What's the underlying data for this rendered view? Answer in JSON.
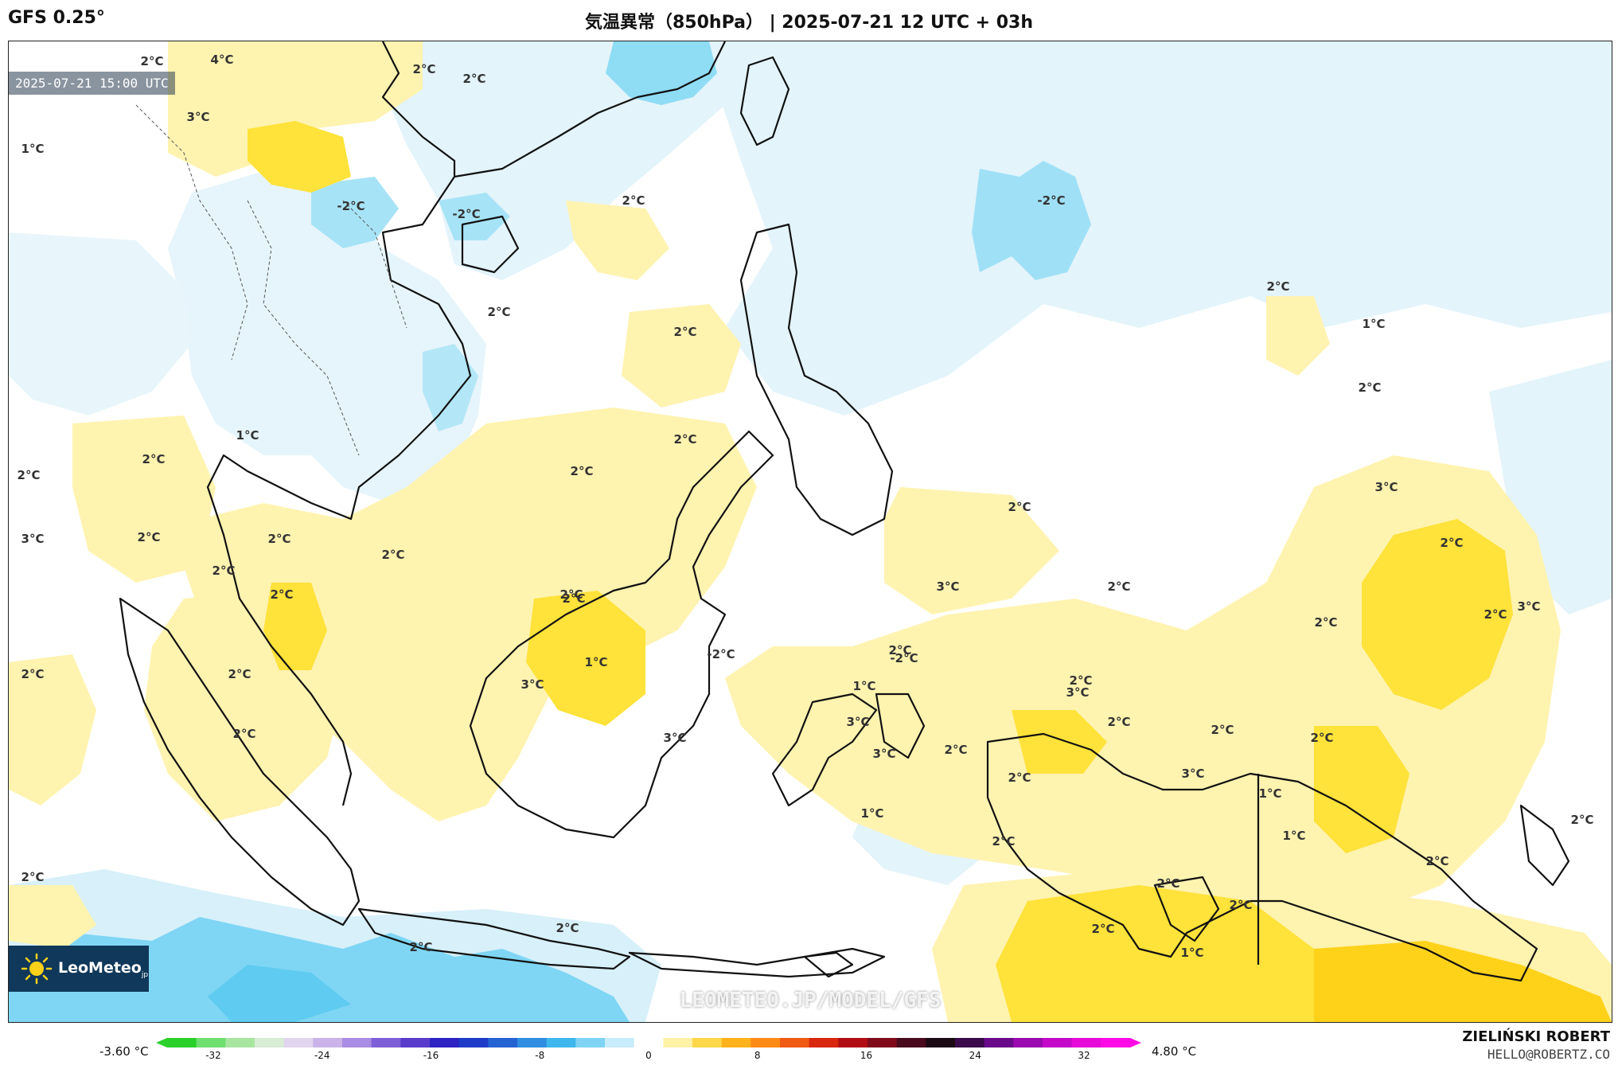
{
  "header": {
    "model": "GFS 0.25°",
    "title": "気温異常（850hPa） | 2025-07-21 12 UTC + 03h"
  },
  "map": {
    "valid_time": "2025-07-21 15:00 UTC",
    "logo_text": "LeoMeteo",
    "logo_suffix": "jp",
    "watermark": "LEOMETEO.JP/MODEL/GFS",
    "labels": [
      "2°C",
      "4°C",
      "2°C",
      "3°C",
      "1°C",
      "2°C",
      "-2°C",
      "-2°C",
      "2°C",
      "-2°C",
      "2°C",
      "2°C",
      "1°C",
      "2°C",
      "2°C",
      "1°C",
      "2°C",
      "2°C",
      "2°C",
      "2°C",
      "2°C",
      "3°C",
      "2°C",
      "2°C",
      "3°C",
      "2°C",
      "2°C",
      "2°C",
      "3°C",
      "2°C",
      "2°C",
      "2°C",
      "2°C",
      "2°C",
      "2°C",
      "2°C",
      "-2°C",
      "-2°C",
      "1°C",
      "1°C",
      "3°C",
      "3°C",
      "3°C",
      "2°C",
      "2°C",
      "3°C",
      "2°C",
      "2°C",
      "2°C",
      "2°C",
      "2°C",
      "2°C",
      "2°C",
      "3°C",
      "3°C",
      "3°C",
      "1°C",
      "2°C",
      "1°C",
      "1°C",
      "2°C",
      "2°C",
      "2°C",
      "2°C",
      "2°C",
      "2°C",
      "2°C",
      "1°C",
      "2°C",
      "2°C"
    ],
    "anomaly_colors": {
      "cold": "#5fd3f3",
      "cool": "#bfeaf8",
      "faint_cool": "#e3f4fb",
      "neutral": "#ffffff",
      "warm": "#fff3b0",
      "hot": "#ffe23a",
      "very_hot": "#ffd21a"
    }
  },
  "colorbar": {
    "min_label": "-3.60 °C",
    "max_label": "4.80 °C",
    "ticks": [
      "-32",
      "-24",
      "-16",
      "-8",
      "0",
      "8",
      "16",
      "24",
      "32"
    ],
    "colors": [
      "#2bd12b",
      "#6fdf6f",
      "#a8e6a0",
      "#d9ecd5",
      "#e0d4ee",
      "#c9b3e8",
      "#a98ce3",
      "#7f5fd8",
      "#5a3ccc",
      "#2e22c2",
      "#1f3cc8",
      "#2563d3",
      "#2f8ee0",
      "#3fb7ec",
      "#7fd3f4",
      "#c7ecfb",
      "#ffffff",
      "#fff1a6",
      "#ffd84a",
      "#ffb21c",
      "#ff8a14",
      "#f05a12",
      "#d8260f",
      "#b20c14",
      "#7f0a1a",
      "#4a0a1e",
      "#1a0a14",
      "#3a0a4a",
      "#6a0a8a",
      "#9a0ab0",
      "#c40ac8",
      "#e60ad8",
      "#ff0ae6"
    ],
    "author": "ZIELIŃSKI ROBERT",
    "email": "HELLO@ROBERTZ.CO"
  }
}
